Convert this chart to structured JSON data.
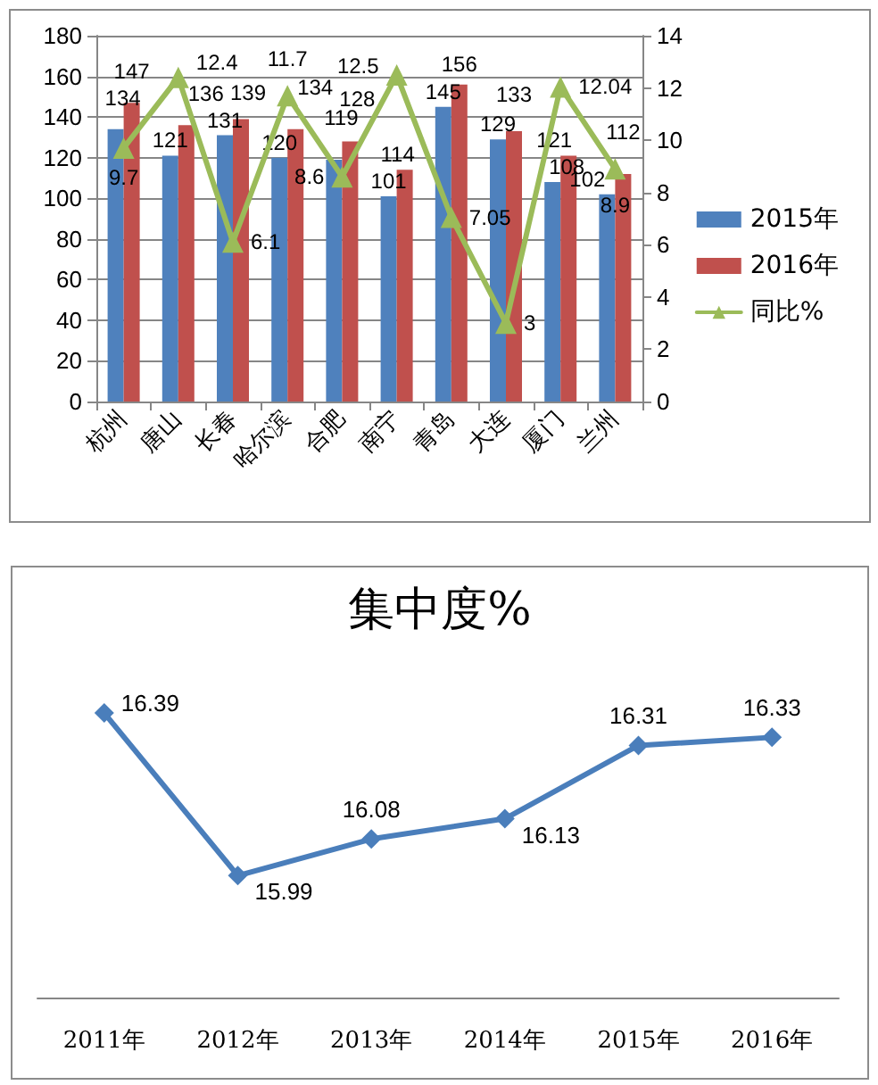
{
  "chart_data": [
    {
      "type": "bar",
      "categories": [
        "杭州",
        "唐山",
        "长春",
        "哈尔滨",
        "合肥",
        "南宁",
        "青岛",
        "大连",
        "厦门",
        "兰州"
      ],
      "series": [
        {
          "name": "2015年",
          "color": "#4f81bd",
          "values": [
            134,
            121,
            131,
            120,
            119,
            101,
            145,
            129,
            108,
            102
          ]
        },
        {
          "name": "2016年",
          "color": "#c0504d",
          "values": [
            147,
            136,
            139,
            134,
            128,
            114,
            156,
            133,
            121,
            112
          ]
        },
        {
          "name": "同比%",
          "type": "line",
          "axis": "y2",
          "color": "#9bbb59",
          "values": [
            9.7,
            12.4,
            6.1,
            11.7,
            8.6,
            12.5,
            7.05,
            3,
            12.04,
            8.9
          ]
        }
      ],
      "ylim": [
        0,
        180
      ],
      "yticks": [
        0,
        20,
        40,
        60,
        80,
        100,
        120,
        140,
        160,
        180
      ],
      "y2lim": [
        0,
        14
      ],
      "y2ticks": [
        0,
        2,
        4,
        6,
        8,
        10,
        12,
        14
      ],
      "grid": "y",
      "legend": "right",
      "marker": "triangle",
      "data_labels": true
    },
    {
      "type": "line",
      "title": "集中度%",
      "categories": [
        "2011年",
        "2012年",
        "2013年",
        "2014年",
        "2015年",
        "2016年"
      ],
      "values": [
        16.39,
        15.99,
        16.08,
        16.13,
        16.31,
        16.33
      ],
      "color": "#4a7ebb",
      "marker": "diamond",
      "data_labels": true,
      "tick_labels": "x"
    }
  ]
}
